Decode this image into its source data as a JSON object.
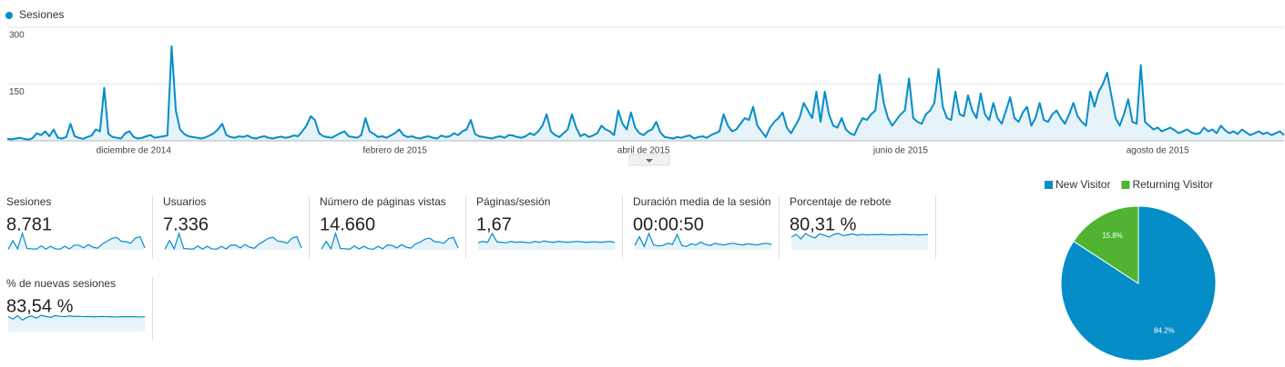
{
  "chart_data": [
    {
      "type": "line",
      "categories": [
        null,
        null,
        null,
        null,
        null,
        null,
        null,
        null,
        null,
        null,
        null,
        null,
        null,
        null,
        null,
        null,
        null,
        null,
        null,
        null,
        null,
        null,
        null,
        null,
        null,
        null,
        null,
        null,
        null,
        null,
        "diciembre de 2014",
        null,
        null,
        null,
        null,
        null,
        null,
        null,
        null,
        null,
        null,
        null,
        null,
        null,
        null,
        null,
        null,
        null,
        null,
        null,
        null,
        null,
        null,
        null,
        null,
        null,
        null,
        null,
        null,
        null,
        null,
        null,
        null,
        null,
        null,
        null,
        null,
        null,
        null,
        null,
        null,
        null,
        null,
        null,
        null,
        null,
        null,
        null,
        null,
        null,
        null,
        null,
        null,
        null,
        null,
        null,
        null,
        null,
        null,
        null,
        null,
        null,
        "febrero de 2015",
        null,
        null,
        null,
        null,
        null,
        null,
        null,
        null,
        null,
        null,
        null,
        null,
        null,
        null,
        null,
        null,
        null,
        null,
        null,
        null,
        null,
        null,
        null,
        null,
        null,
        null,
        null,
        null,
        null,
        null,
        null,
        null,
        null,
        null,
        null,
        null,
        null,
        null,
        null,
        null,
        null,
        null,
        null,
        null,
        null,
        null,
        null,
        null,
        null,
        null,
        null,
        null,
        null,
        null,
        null,
        null,
        null,
        null,
        "abril de 2015",
        null,
        null,
        null,
        null,
        null,
        null,
        null,
        null,
        null,
        null,
        null,
        null,
        null,
        null,
        null,
        null,
        null,
        null,
        null,
        null,
        null,
        null,
        null,
        null,
        null,
        null,
        null,
        null,
        null,
        null,
        null,
        null,
        null,
        null,
        null,
        null,
        null,
        null,
        null,
        null,
        null,
        null,
        null,
        null,
        null,
        null,
        null,
        null,
        null,
        null,
        null,
        null,
        null,
        null,
        null,
        null,
        null,
        null,
        null,
        null,
        "junio de 2015",
        null,
        null,
        null,
        null,
        null,
        null,
        null,
        null,
        null,
        null,
        null,
        null,
        null,
        null,
        null,
        null,
        null,
        null,
        null,
        null,
        null,
        null,
        null,
        null,
        null,
        null,
        null,
        null,
        null,
        null,
        null,
        null,
        null,
        null,
        null,
        null,
        null,
        null,
        null,
        null,
        null,
        null,
        null,
        null,
        null,
        null,
        null,
        null,
        null,
        null,
        null,
        null,
        null,
        null,
        null,
        null,
        null,
        null,
        null,
        null,
        "agosto de 2015",
        null,
        null,
        null,
        null,
        null,
        null,
        null,
        null,
        null,
        null,
        null,
        null,
        null,
        null,
        null,
        null,
        null,
        null,
        null,
        null,
        null,
        null,
        null,
        null,
        null,
        null,
        null,
        null,
        null,
        null
      ],
      "series": [
        {
          "name": "Sesiones",
          "color": "#058dc7",
          "values": [
            5,
            4,
            6,
            8,
            5,
            3,
            7,
            20,
            15,
            25,
            12,
            30,
            8,
            6,
            10,
            45,
            12,
            8,
            5,
            10,
            14,
            30,
            25,
            140,
            18,
            10,
            8,
            6,
            20,
            25,
            10,
            6,
            8,
            12,
            15,
            8,
            10,
            12,
            14,
            250,
            80,
            30,
            18,
            12,
            10,
            8,
            6,
            9,
            14,
            20,
            30,
            45,
            15,
            10,
            8,
            12,
            10,
            14,
            8,
            6,
            10,
            12,
            8,
            6,
            9,
            11,
            8,
            10,
            14,
            12,
            25,
            40,
            65,
            55,
            20,
            12,
            10,
            8,
            14,
            20,
            25,
            12,
            10,
            8,
            15,
            60,
            25,
            18,
            10,
            12,
            8,
            14,
            20,
            30,
            15,
            10,
            12,
            8,
            6,
            10,
            12,
            8,
            6,
            14,
            10,
            12,
            20,
            15,
            25,
            30,
            55,
            18,
            12,
            10,
            8,
            6,
            10,
            12,
            8,
            15,
            14,
            10,
            8,
            12,
            20,
            15,
            25,
            40,
            70,
            25,
            15,
            10,
            20,
            30,
            70,
            35,
            12,
            18,
            10,
            14,
            20,
            40,
            30,
            25,
            15,
            80,
            45,
            30,
            75,
            35,
            20,
            15,
            25,
            30,
            50,
            22,
            10,
            8,
            6,
            10,
            8,
            12,
            14,
            6,
            10,
            12,
            8,
            15,
            20,
            25,
            70,
            40,
            25,
            30,
            45,
            60,
            55,
            90,
            40,
            25,
            10,
            35,
            50,
            60,
            75,
            35,
            20,
            40,
            60,
            100,
            80,
            60,
            130,
            50,
            130,
            70,
            40,
            35,
            60,
            30,
            20,
            15,
            40,
            60,
            55,
            70,
            80,
            175,
            100,
            60,
            40,
            55,
            70,
            80,
            165,
            60,
            50,
            45,
            70,
            80,
            100,
            190,
            90,
            60,
            55,
            130,
            70,
            65,
            120,
            80,
            60,
            125,
            70,
            55,
            100,
            60,
            45,
            80,
            115,
            60,
            50,
            75,
            90,
            40,
            60,
            100,
            55,
            50,
            70,
            80,
            60,
            45,
            70,
            100,
            65,
            50,
            40,
            130,
            90,
            130,
            150,
            180,
            120,
            60,
            40,
            70,
            110,
            50,
            45,
            200,
            50,
            40,
            30,
            35,
            25,
            30,
            35,
            28,
            20,
            25,
            30,
            22,
            18,
            20,
            35,
            25,
            30,
            20,
            40,
            28,
            20,
            25,
            18,
            30,
            22,
            15,
            20,
            25,
            18,
            22,
            15,
            20,
            25,
            15
          ]
        }
      ],
      "ylim": [
        0,
        300
      ],
      "yticks": [
        150,
        300
      ],
      "grid": true
    },
    {
      "type": "pie",
      "categories": [
        "New Visitor",
        "Returning Visitor"
      ],
      "values": [
        84.2,
        15.8
      ],
      "value_labels": [
        "84.2%",
        "15.8%"
      ],
      "colors": [
        "#058dc7",
        "#50b432"
      ]
    }
  ],
  "metrics": [
    {
      "label": "Sesiones",
      "value": "8.781",
      "spark": [
        10,
        140,
        15,
        250,
        20,
        15,
        10,
        60,
        12,
        55,
        15,
        10,
        55,
        15,
        70,
        70,
        30,
        80,
        40,
        25,
        90,
        130,
        175,
        190,
        130,
        125,
        100,
        180,
        200,
        30
      ]
    },
    {
      "label": "Usuarios",
      "value": "7.336",
      "spark": [
        8,
        120,
        12,
        210,
        18,
        12,
        9,
        50,
        10,
        45,
        12,
        8,
        45,
        12,
        60,
        60,
        25,
        68,
        35,
        20,
        75,
        110,
        150,
        160,
        110,
        105,
        85,
        150,
        170,
        25
      ]
    },
    {
      "label": "Número de páginas vistas",
      "value": "14.660",
      "spark": [
        15,
        200,
        25,
        380,
        30,
        25,
        15,
        90,
        20,
        85,
        25,
        15,
        80,
        25,
        110,
        100,
        45,
        120,
        60,
        40,
        140,
        180,
        250,
        270,
        190,
        180,
        150,
        260,
        290,
        45
      ]
    },
    {
      "label": "Páginas/sesión",
      "value": "1,67",
      "spark": [
        1.5,
        1.8,
        1.6,
        3.5,
        1.7,
        1.6,
        1.5,
        1.8,
        1.6,
        1.7,
        1.6,
        1.5,
        1.8,
        1.6,
        1.9,
        1.7,
        1.6,
        1.8,
        1.7,
        1.6,
        1.7,
        1.8,
        1.7,
        1.6,
        1.7,
        1.7,
        1.6,
        1.7,
        1.8,
        1.6
      ]
    },
    {
      "label": "Duración media de la sesión",
      "value": "00:00:50",
      "spark": [
        40,
        120,
        30,
        150,
        45,
        35,
        40,
        60,
        50,
        140,
        40,
        30,
        55,
        45,
        70,
        50,
        40,
        60,
        50,
        45,
        55,
        60,
        50,
        45,
        55,
        50,
        45,
        55,
        60,
        50
      ]
    },
    {
      "label": "Porcentaje de rebote",
      "value": "80,31 %",
      "spark": [
        70,
        85,
        60,
        90,
        75,
        65,
        88,
        80,
        70,
        85,
        90,
        78,
        82,
        88,
        80,
        85,
        82,
        84,
        83,
        85,
        84,
        82,
        83,
        84,
        85,
        83,
        84,
        82,
        83,
        84
      ]
    },
    {
      "label": "% de nuevas sesiones",
      "value": "83,54 %",
      "spark": [
        85,
        70,
        90,
        65,
        80,
        88,
        75,
        92,
        85,
        80,
        90,
        86,
        84,
        88,
        85,
        86,
        84,
        85,
        83,
        84,
        85,
        84,
        83,
        82,
        84,
        83,
        84,
        83,
        82,
        84
      ]
    }
  ]
}
